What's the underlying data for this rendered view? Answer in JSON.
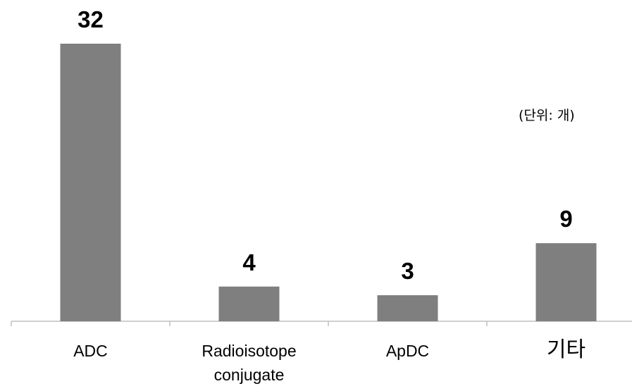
{
  "unit_note": "(단위: 개)",
  "colors": {
    "bar": "#7f7f7f",
    "axis": "#bfbfbf",
    "text": "#000000"
  },
  "chart_data": {
    "type": "bar",
    "categories": [
      "ADC",
      "Radioisotope\nconjugate",
      "ApDC",
      "기타"
    ],
    "values": [
      32,
      4,
      3,
      9
    ],
    "title": "",
    "xlabel": "",
    "ylabel": "",
    "ylim": [
      0,
      32
    ],
    "grid": false,
    "legend": "none",
    "data_labels": true
  }
}
